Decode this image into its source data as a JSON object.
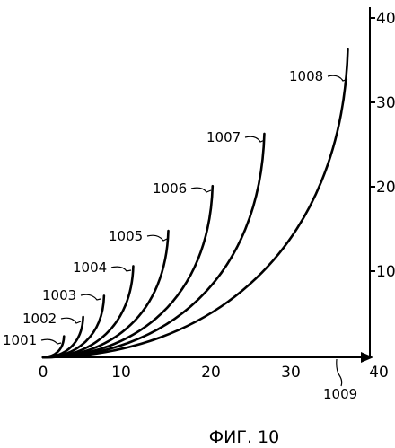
{
  "figure": {
    "caption": "ФИГ. 10",
    "x_ticks": [
      "0",
      "10",
      "20",
      "30",
      "40"
    ],
    "y_ticks": [
      "10",
      "20",
      "30",
      "40"
    ],
    "axis_ref": "1009",
    "curves": [
      {
        "ref": "1001",
        "end": 2.5
      },
      {
        "ref": "1002",
        "end": 4.8
      },
      {
        "ref": "1003",
        "end": 7.3
      },
      {
        "ref": "1004",
        "end": 10.8
      },
      {
        "ref": "1005",
        "end": 15.0
      },
      {
        "ref": "1006",
        "end": 20.3
      },
      {
        "ref": "1007",
        "end": 26.5
      },
      {
        "ref": "1008",
        "end": 36.5
      }
    ]
  }
}
